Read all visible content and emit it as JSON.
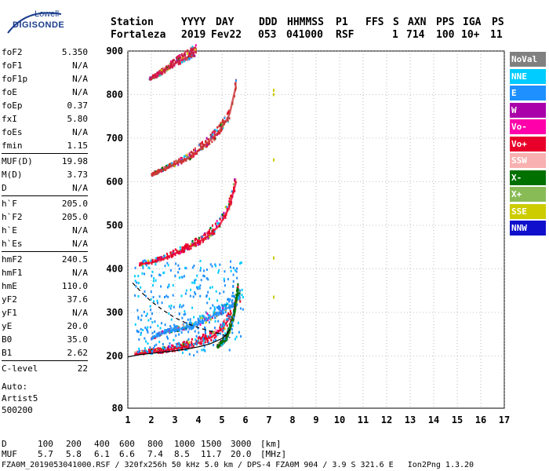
{
  "logo": {
    "line1": "Lowell",
    "line2": "DIGISONDE"
  },
  "header": {
    "labels": [
      "Station",
      "YYYY",
      "DAY",
      "DDD",
      "HHMMSS",
      "P1",
      "FFS",
      "S",
      "AXN",
      "PPS",
      "IGA",
      "PS"
    ],
    "values": [
      "Fortaleza",
      "2019",
      "Fev22",
      "053",
      "041000",
      "RSF",
      "1",
      "714",
      "100",
      "10+",
      "11"
    ]
  },
  "params": [
    {
      "k": "foF2",
      "v": "5.350"
    },
    {
      "k": "foF1",
      "v": "N/A"
    },
    {
      "k": "foF1p",
      "v": "N/A"
    },
    {
      "k": "foE",
      "v": "N/A"
    },
    {
      "k": "foEp",
      "v": "0.37"
    },
    {
      "k": "fxI",
      "v": "5.80"
    },
    {
      "k": "foEs",
      "v": "N/A"
    },
    {
      "k": "fmin",
      "v": "1.15"
    },
    {
      "sep": true
    },
    {
      "k": "MUF(D)",
      "v": "19.98"
    },
    {
      "k": "M(D)",
      "v": "3.73"
    },
    {
      "k": "D",
      "v": "N/A"
    },
    {
      "sep": true
    },
    {
      "k": "h`F",
      "v": "205.0"
    },
    {
      "k": "h`F2",
      "v": "205.0"
    },
    {
      "k": "h`E",
      "v": "N/A"
    },
    {
      "k": "h`Es",
      "v": "N/A"
    },
    {
      "sep": true
    },
    {
      "k": "hmF2",
      "v": "240.5"
    },
    {
      "k": "hmF1",
      "v": "N/A"
    },
    {
      "k": "hmE",
      "v": "110.0"
    },
    {
      "k": "yF2",
      "v": "37.6"
    },
    {
      "k": "yF1",
      "v": "N/A"
    },
    {
      "k": "yE",
      "v": "20.0"
    },
    {
      "k": "B0",
      "v": "35.0"
    },
    {
      "k": "B1",
      "v": "2.62"
    },
    {
      "sep": true
    },
    {
      "k": "C-level",
      "v": "22"
    }
  ],
  "notes": [
    "Auto:",
    "Artist5",
    "500200"
  ],
  "legend": [
    {
      "label": "NoVal",
      "bg": "#808080",
      "fg": "#ffffff"
    },
    {
      "label": "NNE",
      "bg": "#00ccff",
      "fg": "#ffffff"
    },
    {
      "label": "E",
      "bg": "#1e90ff",
      "fg": "#ffffff"
    },
    {
      "label": "W",
      "bg": "#aa00aa",
      "fg": "#ffffff"
    },
    {
      "label": "Vo-",
      "bg": "#ff00aa",
      "fg": "#ffffff"
    },
    {
      "label": "Vo+",
      "bg": "#e8002a",
      "fg": "#ffffff"
    },
    {
      "label": "SSW",
      "bg": "#f8b0b0",
      "fg": "#ffffff"
    },
    {
      "label": "X-",
      "bg": "#007000",
      "fg": "#ffffff"
    },
    {
      "label": "X+",
      "bg": "#88bb55",
      "fg": "#ffffff"
    },
    {
      "label": "SSE",
      "bg": "#cccc00",
      "fg": "#ffffff"
    },
    {
      "label": "NNW",
      "bg": "#1010cc",
      "fg": "#ffffff"
    }
  ],
  "footer": {
    "distance_label": "D",
    "distance_values": [
      "100",
      "200",
      "400",
      "600",
      "800",
      "1000",
      "1500",
      "3000",
      "[km]"
    ],
    "muf_label": "MUF",
    "muf_values": [
      "5.7",
      "5.8",
      "6.1",
      "6.6",
      "7.4",
      "8.5",
      "11.7",
      "20.0",
      "[MHz]"
    ],
    "status_line": "FZA0M_2019053041000.RSF / 320fx256h 50 kHz 5.0 km / DPS-4 FZA0M 904 / 3.9 S 321.6 E   Ion2Png 1.3.20"
  },
  "chart_data": {
    "type": "scatter",
    "title": "",
    "xlabel": "",
    "ylabel": "",
    "xlim": [
      1,
      17
    ],
    "ylim": [
      80,
      900
    ],
    "x_ticks": [
      1,
      2,
      3,
      4,
      5,
      6,
      7,
      8,
      9,
      10,
      11,
      12,
      13,
      14,
      15,
      16,
      17
    ],
    "y_ticks": [
      200,
      300,
      400,
      500,
      600,
      700,
      800,
      900
    ],
    "y_tick_extra": [
      80
    ],
    "grid": true,
    "traces": [
      {
        "name": "O-trace 1st hop",
        "color": "#e8002a",
        "x": [
          1.3,
          1.8,
          2.5,
          3.3,
          4.0,
          4.6,
          5.0,
          5.3,
          5.4
        ],
        "y": [
          205,
          208,
          212,
          220,
          230,
          245,
          262,
          285,
          300
        ]
      },
      {
        "name": "E echoes",
        "color": "#1e90ff",
        "x": [
          2.0,
          2.6,
          3.2,
          3.8,
          4.3,
          4.8,
          5.3,
          5.8
        ],
        "y": [
          240,
          255,
          262,
          270,
          282,
          298,
          312,
          335
        ]
      },
      {
        "name": "X-trace",
        "color": "#007000",
        "x": [
          4.8,
          5.2,
          5.5,
          5.7
        ],
        "y": [
          220,
          240,
          290,
          355
        ]
      },
      {
        "name": "2nd hop",
        "color": "#e8002a",
        "x": [
          1.5,
          2.0,
          2.6,
          3.2,
          3.8,
          4.4,
          4.9,
          5.3,
          5.6
        ],
        "y": [
          410,
          415,
          425,
          440,
          455,
          475,
          500,
          540,
          600
        ]
      },
      {
        "name": "3rd hop",
        "color": "#cc3333",
        "x": [
          2.0,
          2.4,
          3.0,
          3.6,
          4.2,
          4.8,
          5.3,
          5.6
        ],
        "y": [
          615,
          625,
          640,
          655,
          680,
          710,
          750,
          820
        ]
      },
      {
        "name": "4th hop",
        "color": "#cc2244",
        "x": [
          1.9,
          2.3,
          2.7,
          3.1,
          3.5,
          3.9
        ],
        "y": [
          835,
          845,
          860,
          875,
          885,
          900
        ]
      }
    ],
    "profile_solid": {
      "x": [
        1.0,
        1.5,
        2.0,
        2.5,
        3.0,
        3.5,
        4.0,
        4.5,
        5.0,
        5.2,
        5.35
      ],
      "y": [
        198,
        203,
        206,
        209,
        212,
        216,
        221,
        228,
        240,
        250,
        262
      ]
    },
    "profile_dashed": {
      "x": [
        1.2,
        1.6,
        2.0,
        2.5,
        3.0,
        3.5,
        4.0,
        4.5,
        5.0,
        5.35
      ],
      "y": [
        368,
        345,
        325,
        305,
        288,
        275,
        265,
        257,
        250,
        242
      ]
    },
    "isolated_points": {
      "color": "#cccc00",
      "x": [
        7.2,
        7.2,
        7.2,
        7.2,
        7.2
      ],
      "y": [
        810,
        800,
        650,
        425,
        335
      ]
    }
  }
}
